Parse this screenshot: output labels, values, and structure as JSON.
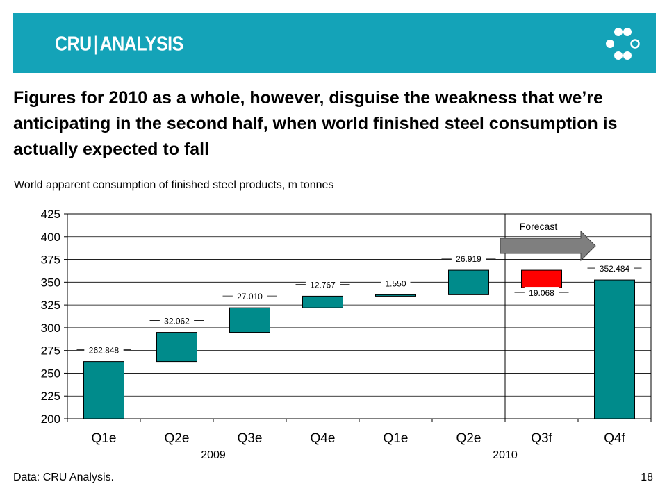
{
  "header": {
    "brand_left": "CRU",
    "brand_right": "ANALYSIS",
    "logo_icon": "cru-dots-logo-icon"
  },
  "colors": {
    "banner": "#14a3b8",
    "bar_teal": "#008b8b",
    "bar_red": "#ff0000",
    "arrow": "#7f7f7f"
  },
  "headline": "Figures for 2010 as a whole, however, disguise the weakness that we’re anticipating in the second half, when world finished steel consumption is actually expected to fall",
  "subtitle": "World apparent consumption of finished steel products, m tonnes",
  "footer": {
    "source": "Data: CRU Analysis.",
    "page": "18"
  },
  "chart_data": {
    "type": "bar",
    "subtype": "waterfall",
    "categories": [
      "Q1e",
      "Q2e",
      "Q3e",
      "Q4e",
      "Q1e",
      "Q2e",
      "Q3f",
      "Q4f"
    ],
    "groups": [
      {
        "label": "2009",
        "categories": [
          0,
          1,
          2,
          3
        ]
      },
      {
        "label": "2010",
        "categories": [
          4,
          5,
          6,
          7
        ]
      }
    ],
    "bars": [
      {
        "base": 200,
        "value": 262.848,
        "label": "262.848",
        "kind": "total"
      },
      {
        "base": 262.848,
        "value": 294.91,
        "label": "32.062",
        "kind": "increase"
      },
      {
        "base": 294.91,
        "value": 321.92,
        "label": "27.010",
        "kind": "increase"
      },
      {
        "base": 321.92,
        "value": 334.687,
        "label": "12.767",
        "kind": "increase"
      },
      {
        "base": 334.687,
        "value": 336.237,
        "label": "1.550",
        "kind": "increase"
      },
      {
        "base": 336.237,
        "value": 363.156,
        "label": "26.919",
        "kind": "increase"
      },
      {
        "base": 344.088,
        "value": 363.156,
        "label": "19.068",
        "kind": "decrease"
      },
      {
        "base": 200,
        "value": 352.484,
        "label": "352.484",
        "kind": "total"
      }
    ],
    "ylim": [
      200,
      425
    ],
    "yticks": [
      200,
      225,
      250,
      275,
      300,
      325,
      350,
      375,
      400,
      425
    ],
    "grid": true,
    "forecast": {
      "label": "Forecast",
      "starts_at_index": 6
    },
    "xlabel": "",
    "ylabel": ""
  }
}
